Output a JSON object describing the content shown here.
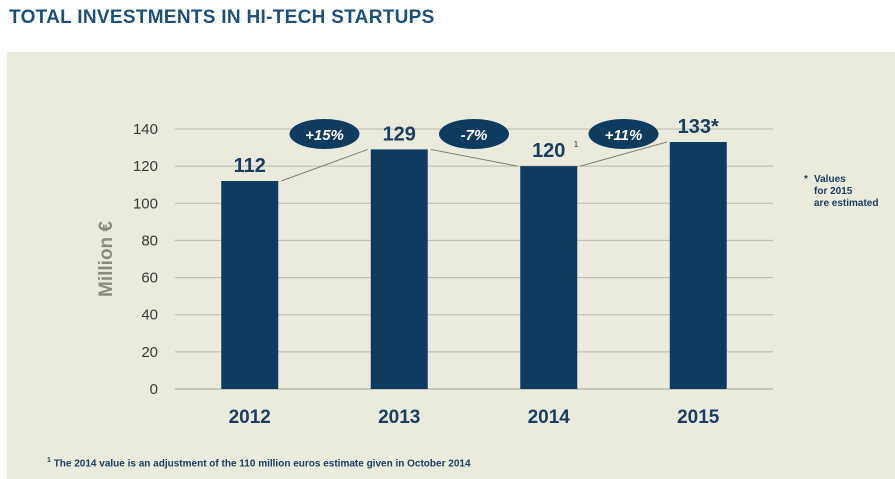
{
  "title": "TOTAL INVESTMENTS IN HI-TECH STARTUPS",
  "chart_data": {
    "type": "bar",
    "categories": [
      "2012",
      "2013",
      "2014",
      "2015"
    ],
    "values": [
      112,
      129,
      120,
      133
    ],
    "value_labels": [
      "112",
      "129",
      "120",
      "133*"
    ],
    "label_superscripts": [
      "",
      "",
      "1",
      ""
    ],
    "changes": [
      "+15%",
      "-7%",
      "+11%"
    ],
    "ylabel": "Million €",
    "ylim": [
      0,
      140
    ],
    "yticks": [
      0,
      20,
      40,
      60,
      80,
      100,
      120,
      140
    ],
    "grid": true,
    "colors": {
      "bar": "#0f3b5f",
      "grid": "#b9b9ad",
      "text": "#1a3d60",
      "axis_label": "#8a8a7e",
      "tick": "#3a3a3a"
    }
  },
  "note": {
    "star": "*",
    "lines": [
      "Values",
      "for 2015",
      "are estimated"
    ]
  },
  "footnote": {
    "mark": "1",
    "text": "The 2014 value is an adjustment of the 110 million euros estimate given in October 2014"
  }
}
